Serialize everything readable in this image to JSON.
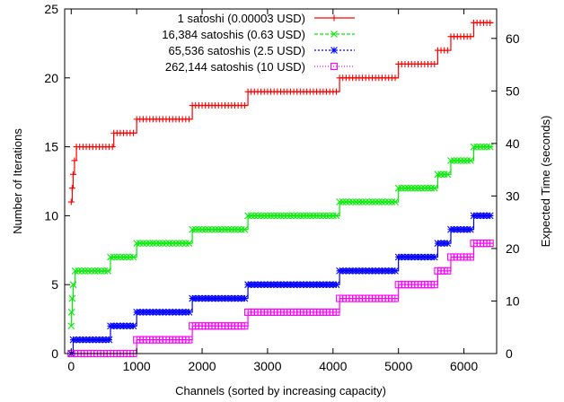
{
  "chart_data": {
    "type": "line",
    "xlabel": "Channels (sorted by increasing capacity)",
    "ylabel": "Number of Iterations",
    "y2label": "Expected Time (seconds)",
    "xlim": [
      -100,
      6500
    ],
    "ylim": [
      0,
      25
    ],
    "y2lim": [
      0,
      65.6
    ],
    "xticks": [
      0,
      1000,
      2000,
      3000,
      4000,
      5000,
      6000
    ],
    "yticks": [
      0,
      5,
      10,
      15,
      20,
      25
    ],
    "y2ticks": [
      0,
      10,
      20,
      30,
      40,
      50,
      60
    ],
    "legend_position": "top-left",
    "grid": false,
    "series": [
      {
        "name": "1 satoshi (0.00003 USD)",
        "color": "#ff0000",
        "marker": "plus",
        "steps": [
          [
            0,
            11
          ],
          [
            15,
            12
          ],
          [
            30,
            13
          ],
          [
            50,
            14
          ],
          [
            80,
            15
          ],
          [
            650,
            16
          ],
          [
            1000,
            17
          ],
          [
            1850,
            18
          ],
          [
            2700,
            19
          ],
          [
            4100,
            20
          ],
          [
            5000,
            21
          ],
          [
            5600,
            22
          ],
          [
            5800,
            23
          ],
          [
            6150,
            24
          ]
        ],
        "x_end": 6450
      },
      {
        "name": "16,384 satoshis (0.63 USD)",
        "color": "#00ee00",
        "marker": "x",
        "steps": [
          [
            0,
            2
          ],
          [
            5,
            3
          ],
          [
            15,
            4
          ],
          [
            30,
            5
          ],
          [
            60,
            6
          ],
          [
            600,
            7
          ],
          [
            1000,
            8
          ],
          [
            1850,
            9
          ],
          [
            2700,
            10
          ],
          [
            4100,
            11
          ],
          [
            5000,
            12
          ],
          [
            5600,
            13
          ],
          [
            5800,
            14
          ],
          [
            6150,
            15
          ]
        ],
        "x_end": 6450
      },
      {
        "name": "65,536 satoshis (2.5 USD)",
        "color": "#0000ff",
        "marker": "star",
        "steps": [
          [
            0,
            0
          ],
          [
            30,
            1
          ],
          [
            600,
            2
          ],
          [
            1000,
            3
          ],
          [
            1850,
            4
          ],
          [
            2700,
            5
          ],
          [
            4100,
            6
          ],
          [
            5000,
            7
          ],
          [
            5600,
            8
          ],
          [
            5800,
            9
          ],
          [
            6150,
            10
          ]
        ],
        "x_end": 6450
      },
      {
        "name": "262,144 satoshis (10 USD)",
        "color": "#ff00ff",
        "marker": "square",
        "steps": [
          [
            0,
            0
          ],
          [
            1000,
            1
          ],
          [
            1850,
            2
          ],
          [
            2700,
            3
          ],
          [
            4100,
            4
          ],
          [
            5000,
            5
          ],
          [
            5600,
            6
          ],
          [
            5800,
            7
          ],
          [
            6150,
            8
          ]
        ],
        "x_end": 6450
      }
    ]
  }
}
